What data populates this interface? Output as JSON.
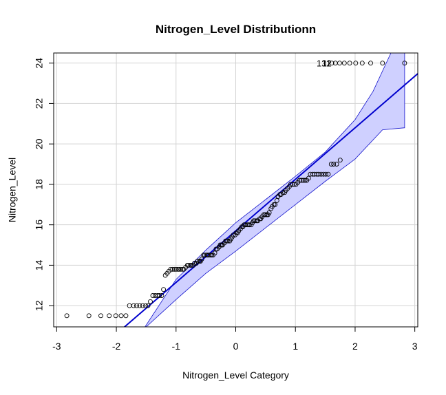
{
  "chart_data": {
    "type": "scatter",
    "title": "Nitrogen_Level Distributionn",
    "xlabel": "Nitrogen_Level Category",
    "ylabel": "Nitrogen_Level",
    "xlim": [
      -3.05,
      3.05
    ],
    "ylim": [
      10.95,
      24.5
    ],
    "xticks": [
      -3,
      -2,
      -1,
      0,
      1,
      2,
      3
    ],
    "yticks": [
      12,
      14,
      16,
      18,
      20,
      22,
      24
    ],
    "grid": true,
    "reference_line": {
      "intercept": 15.7,
      "slope": 2.55
    },
    "confidence_band": {
      "upper": [
        [
          -1.52,
          10.95
        ],
        [
          -1.0,
          13.3
        ],
        [
          -0.5,
          14.75
        ],
        [
          0,
          16.1
        ],
        [
          0.5,
          17.25
        ],
        [
          1.0,
          18.4
        ],
        [
          1.5,
          19.6
        ],
        [
          2.0,
          21.2
        ],
        [
          2.3,
          22.6
        ],
        [
          2.6,
          24.5
        ],
        [
          2.83,
          24.5
        ]
      ],
      "lower": [
        [
          2.83,
          20.8
        ],
        [
          2.46,
          20.7
        ],
        [
          2.0,
          19.25
        ],
        [
          1.5,
          18.15
        ],
        [
          1.0,
          17.0
        ],
        [
          0.5,
          15.85
        ],
        [
          0,
          14.7
        ],
        [
          -0.5,
          13.6
        ],
        [
          -1.0,
          12.3
        ],
        [
          -1.5,
          10.95
        ]
      ]
    },
    "series": [
      {
        "points": [
          [
            -2.83,
            11.5
          ],
          [
            -2.46,
            11.5
          ],
          [
            -2.26,
            11.5
          ],
          [
            -2.12,
            11.5
          ],
          [
            -2.01,
            11.5
          ],
          [
            -1.92,
            11.5
          ],
          [
            -1.84,
            11.5
          ],
          [
            -1.78,
            12.0
          ],
          [
            -1.71,
            12.0
          ],
          [
            -1.66,
            12.0
          ],
          [
            -1.61,
            12.0
          ],
          [
            -1.56,
            12.0
          ],
          [
            -1.51,
            12.0
          ],
          [
            -1.47,
            12.0
          ],
          [
            -1.43,
            12.2
          ],
          [
            -1.39,
            12.5
          ],
          [
            -1.35,
            12.5
          ],
          [
            -1.31,
            12.5
          ],
          [
            -1.28,
            12.5
          ],
          [
            -1.24,
            12.5
          ],
          [
            -1.21,
            12.8
          ],
          [
            -1.18,
            13.5
          ],
          [
            -1.15,
            13.6
          ],
          [
            -1.12,
            13.7
          ],
          [
            -1.09,
            13.8
          ],
          [
            -1.06,
            13.8
          ],
          [
            -1.03,
            13.8
          ],
          [
            -1.0,
            13.8
          ],
          [
            -0.97,
            13.8
          ],
          [
            -0.95,
            13.8
          ],
          [
            -0.92,
            13.8
          ],
          [
            -0.89,
            13.8
          ],
          [
            -0.87,
            13.8
          ],
          [
            -0.84,
            13.9
          ],
          [
            -0.81,
            14.0
          ],
          [
            -0.79,
            14.0
          ],
          [
            -0.76,
            14.0
          ],
          [
            -0.74,
            14.0
          ],
          [
            -0.71,
            14.0
          ],
          [
            -0.69,
            14.1
          ],
          [
            -0.66,
            14.1
          ],
          [
            -0.64,
            14.2
          ],
          [
            -0.61,
            14.2
          ],
          [
            -0.59,
            14.2
          ],
          [
            -0.57,
            14.3
          ],
          [
            -0.54,
            14.5
          ],
          [
            -0.52,
            14.5
          ],
          [
            -0.49,
            14.5
          ],
          [
            -0.47,
            14.5
          ],
          [
            -0.45,
            14.5
          ],
          [
            -0.42,
            14.5
          ],
          [
            -0.4,
            14.5
          ],
          [
            -0.38,
            14.5
          ],
          [
            -0.35,
            14.6
          ],
          [
            -0.33,
            14.8
          ],
          [
            -0.31,
            14.8
          ],
          [
            -0.28,
            14.9
          ],
          [
            -0.26,
            15.0
          ],
          [
            -0.24,
            15.0
          ],
          [
            -0.22,
            15.0
          ],
          [
            -0.19,
            15.1
          ],
          [
            -0.17,
            15.2
          ],
          [
            -0.15,
            15.2
          ],
          [
            -0.13,
            15.2
          ],
          [
            -0.1,
            15.2
          ],
          [
            -0.08,
            15.3
          ],
          [
            -0.06,
            15.4
          ],
          [
            -0.04,
            15.5
          ],
          [
            -0.01,
            15.5
          ],
          [
            0.01,
            15.6
          ],
          [
            0.03,
            15.6
          ],
          [
            0.05,
            15.7
          ],
          [
            0.08,
            15.8
          ],
          [
            0.1,
            15.9
          ],
          [
            0.12,
            15.9
          ],
          [
            0.14,
            16.0
          ],
          [
            0.16,
            16.0
          ],
          [
            0.19,
            16.0
          ],
          [
            0.21,
            16.0
          ],
          [
            0.23,
            16.0
          ],
          [
            0.26,
            16.0
          ],
          [
            0.28,
            16.1
          ],
          [
            0.3,
            16.2
          ],
          [
            0.32,
            16.2
          ],
          [
            0.35,
            16.2
          ],
          [
            0.37,
            16.2
          ],
          [
            0.4,
            16.3
          ],
          [
            0.42,
            16.3
          ],
          [
            0.44,
            16.4
          ],
          [
            0.47,
            16.5
          ],
          [
            0.49,
            16.5
          ],
          [
            0.52,
            16.5
          ],
          [
            0.54,
            16.5
          ],
          [
            0.56,
            16.6
          ],
          [
            0.59,
            16.8
          ],
          [
            0.61,
            16.9
          ],
          [
            0.64,
            17.0
          ],
          [
            0.66,
            17.0
          ],
          [
            0.69,
            17.2
          ],
          [
            0.71,
            17.4
          ],
          [
            0.74,
            17.5
          ],
          [
            0.76,
            17.5
          ],
          [
            0.79,
            17.6
          ],
          [
            0.82,
            17.6
          ],
          [
            0.84,
            17.7
          ],
          [
            0.87,
            17.8
          ],
          [
            0.9,
            17.9
          ],
          [
            0.92,
            18.0
          ],
          [
            0.95,
            18.0
          ],
          [
            0.98,
            18.0
          ],
          [
            1.01,
            18.0
          ],
          [
            1.04,
            18.1
          ],
          [
            1.07,
            18.2
          ],
          [
            1.1,
            18.2
          ],
          [
            1.13,
            18.2
          ],
          [
            1.16,
            18.2
          ],
          [
            1.19,
            18.2
          ],
          [
            1.22,
            18.3
          ],
          [
            1.25,
            18.5
          ],
          [
            1.29,
            18.5
          ],
          [
            1.32,
            18.5
          ],
          [
            1.36,
            18.5
          ],
          [
            1.39,
            18.5
          ],
          [
            1.43,
            18.5
          ],
          [
            1.47,
            18.5
          ],
          [
            1.51,
            18.5
          ],
          [
            1.55,
            18.5
          ],
          [
            1.6,
            19.0
          ],
          [
            1.64,
            19.0
          ],
          [
            1.69,
            19.0
          ],
          [
            1.75,
            19.2
          ],
          [
            1.61,
            24.0
          ],
          [
            1.67,
            24.0
          ],
          [
            1.74,
            24.0
          ],
          [
            1.82,
            24.0
          ],
          [
            1.91,
            24.0
          ],
          [
            2.01,
            24.0
          ],
          [
            2.12,
            24.0
          ],
          [
            2.26,
            24.0
          ],
          [
            2.46,
            24.0
          ],
          [
            2.83,
            24.0
          ]
        ]
      }
    ],
    "outlier_labels": [
      {
        "text": "132",
        "x": 1.48,
        "y": 24.0
      },
      {
        "text": "11",
        "x": 1.52,
        "y": 24.0
      }
    ],
    "colors": {
      "line": "#0000cd",
      "band_fill": "#cfd0ff",
      "band_edge": "#1414cc",
      "grid": "#d3d3d3",
      "points": "#000000"
    }
  }
}
